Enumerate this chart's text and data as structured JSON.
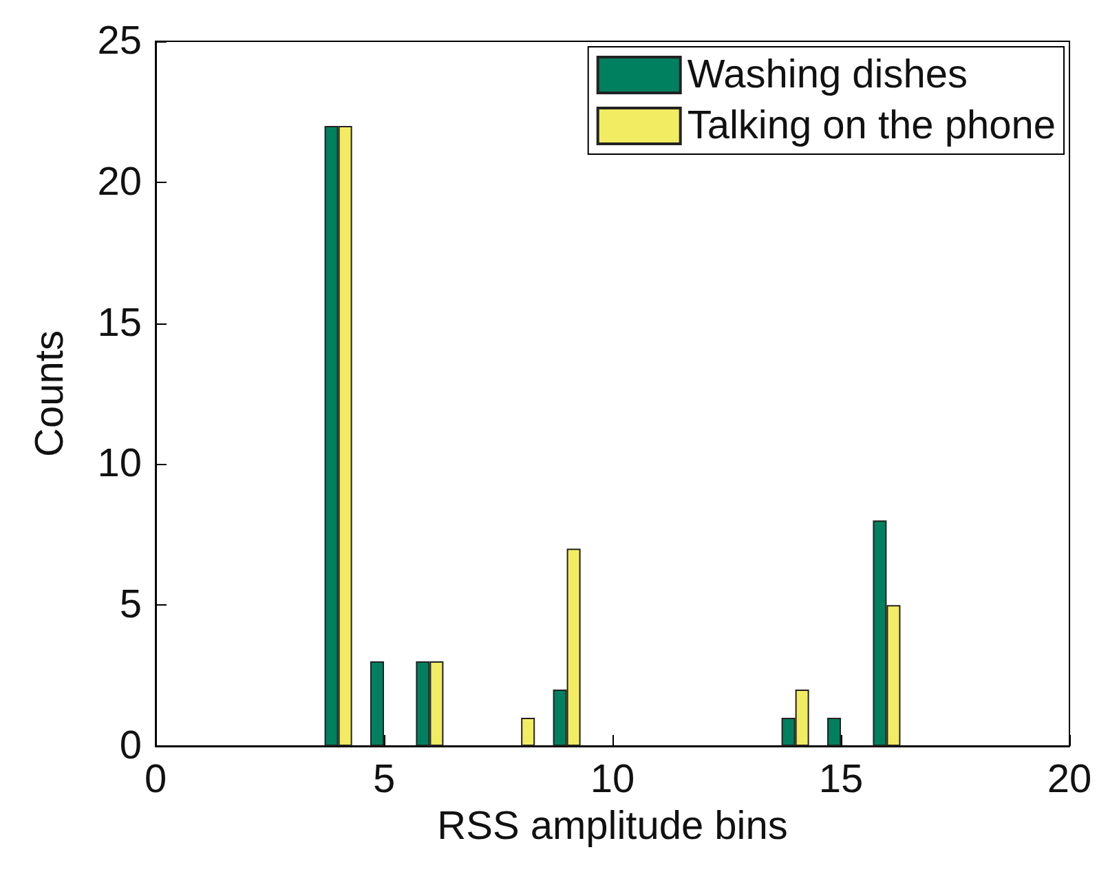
{
  "chart_data": {
    "type": "bar",
    "xlabel": "RSS amplitude bins",
    "ylabel": "Counts",
    "x": [
      4,
      5,
      6,
      8,
      9,
      14,
      15,
      16
    ],
    "series": [
      {
        "name": "Washing dishes",
        "color": "#00805f",
        "values": [
          22,
          3,
          3,
          0,
          2,
          1,
          1,
          8
        ]
      },
      {
        "name": "Talking on the phone",
        "color": "#f2ec62",
        "values": [
          22,
          0,
          3,
          1,
          7,
          2,
          0,
          5
        ]
      }
    ],
    "xlim": [
      0,
      20
    ],
    "xticks": [
      0,
      5,
      10,
      15,
      20
    ],
    "ylim": [
      0,
      25
    ],
    "yticks": [
      0,
      5,
      10,
      15,
      20,
      25
    ],
    "legend": "top right",
    "grid": false
  }
}
